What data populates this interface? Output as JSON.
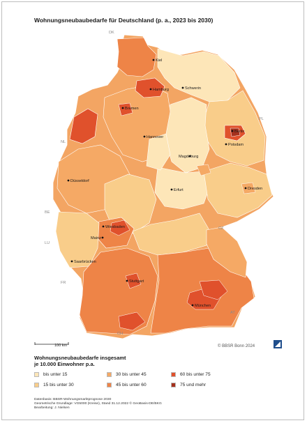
{
  "title": "Wohnungsneubaubedarfe für Deutschland (p. a., 2023 bis 2030)",
  "legend": {
    "title_line1": "Wohnungsneubaubedarfe insgesamt",
    "title_line2": "je 10.000 Einwohner p.a.",
    "classes": [
      {
        "label": "bis unter 15",
        "color": "#fde6b8"
      },
      {
        "label": "15 bis unter 30",
        "color": "#f9cd8a"
      },
      {
        "label": "30 bis unter 45",
        "color": "#f5a965"
      },
      {
        "label": "45 bis unter 60",
        "color": "#ee8447"
      },
      {
        "label": "60 bis unter 75",
        "color": "#e0512c"
      },
      {
        "label": "75 und mehr",
        "color": "#a5311d"
      }
    ]
  },
  "cities": {
    "kiel": "Kiel",
    "hamburg": "Hamburg",
    "schwerin": "Schwerin",
    "bremen": "Bremen",
    "berlin": "Berlin",
    "hannover": "Hannover",
    "potsdam": "Potsdam",
    "magdeburg": "Magdeburg",
    "duesseldorf": "Düsseldorf",
    "erfurt": "Erfurt",
    "dresden": "Dresden",
    "wiesbaden": "Wiesbaden",
    "mainz": "Mainz",
    "saarbruecken": "Saarbrücken",
    "stuttgart": "Stuttgart",
    "muenchen": "München"
  },
  "countries": {
    "dk": "DK",
    "pl": "PL",
    "nl": "NL",
    "be": "BE",
    "lu": "LU",
    "cz": "CZ",
    "fr": "FR",
    "at": "AT",
    "ch": "CH"
  },
  "scale_label": "100 km",
  "copyright": "© BBSR Bonn 2024",
  "sources": {
    "line1": "Datenbasis: BBSR-Wohnungsmarktprognose 2030",
    "line2": "Geometrische Grundlage: VG5000 (Kreise), Stand 31.12.2022 © GeoBasis-DE/BKG",
    "line3": "Bearbeitung: J. Nielsen"
  }
}
